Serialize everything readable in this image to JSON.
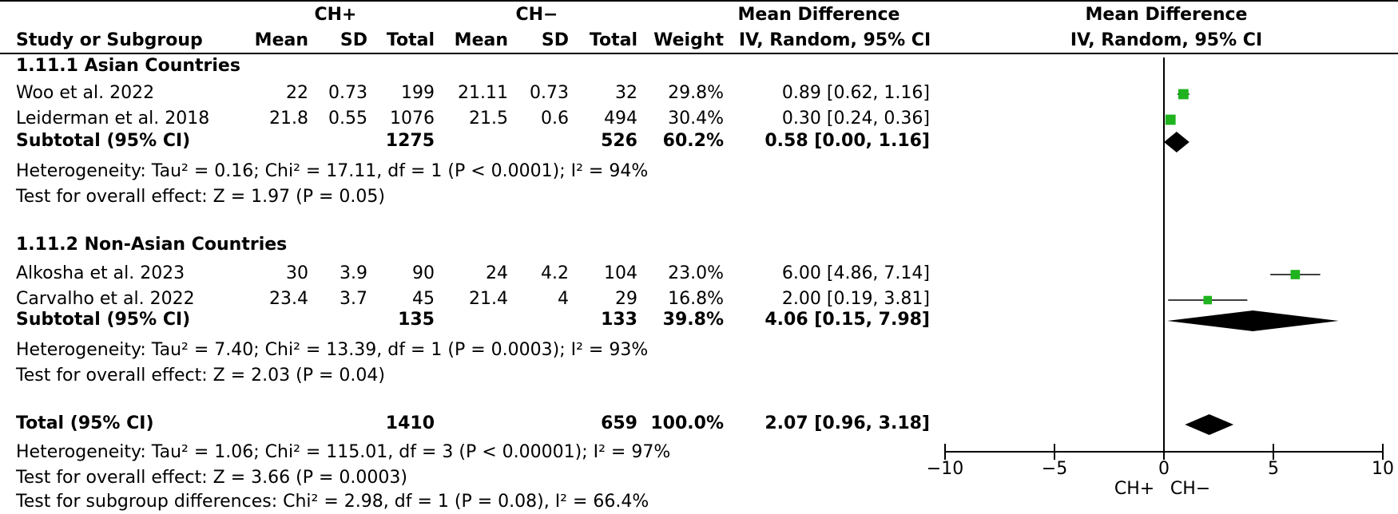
{
  "headers": {
    "group1": "CH+",
    "group2": "CH−",
    "md_title": "Mean Difference",
    "md_sub": "IV, Random, 95% CI",
    "plot_title": "Mean Difference",
    "plot_sub": "IV, Random, 95% CI",
    "study": "Study or Subgroup",
    "mean": "Mean",
    "sd": "SD",
    "total": "Total",
    "weight": "Weight"
  },
  "subgroups": [
    {
      "title": "1.11.1 Asian Countries",
      "studies": [
        {
          "name": "Woo et al. 2022",
          "m1": "22",
          "sd1": "0.73",
          "n1": "199",
          "m2": "21.11",
          "sd2": "0.73",
          "n2": "32",
          "weight": "29.8%",
          "ci": "0.89 [0.62, 1.16]"
        },
        {
          "name": "Leiderman et al. 2018",
          "m1": "21.8",
          "sd1": "0.55",
          "n1": "1076",
          "m2": "21.5",
          "sd2": "0.6",
          "n2": "494",
          "weight": "30.4%",
          "ci": "0.30 [0.24, 0.36]"
        }
      ],
      "subtotal": {
        "label": "Subtotal (95% CI)",
        "n1": "1275",
        "n2": "526",
        "weight": "60.2%",
        "ci": "0.58 [0.00, 1.16]"
      },
      "heterogeneity": "Heterogeneity: Tau² = 0.16; Chi² = 17.11, df = 1 (P < 0.0001); I² = 94%",
      "overall": "Test for overall effect: Z = 1.97 (P = 0.05)"
    },
    {
      "title": "1.11.2 Non-Asian Countries",
      "studies": [
        {
          "name": "Alkosha et al. 2023",
          "m1": "30",
          "sd1": "3.9",
          "n1": "90",
          "m2": "24",
          "sd2": "4.2",
          "n2": "104",
          "weight": "23.0%",
          "ci": "6.00 [4.86, 7.14]"
        },
        {
          "name": "Carvalho et al. 2022",
          "m1": "23.4",
          "sd1": "3.7",
          "n1": "45",
          "m2": "21.4",
          "sd2": "4",
          "n2": "29",
          "weight": "16.8%",
          "ci": "2.00 [0.19, 3.81]"
        }
      ],
      "subtotal": {
        "label": "Subtotal (95% CI)",
        "n1": "135",
        "n2": "133",
        "weight": "39.8%",
        "ci": "4.06 [0.15, 7.98]"
      },
      "heterogeneity": "Heterogeneity: Tau² = 7.40; Chi² = 13.39, df = 1 (P = 0.0003); I² = 93%",
      "overall": "Test for overall effect: Z = 2.03 (P = 0.04)"
    }
  ],
  "total": {
    "label": "Total (95% CI)",
    "n1": "1410",
    "n2": "659",
    "weight": "100.0%",
    "ci": "2.07 [0.96, 3.18]",
    "heterogeneity": "Heterogeneity: Tau² = 1.06; Chi² = 115.01, df = 3 (P < 0.00001); I² = 97%",
    "overall": "Test for overall effect: Z = 3.66 (P = 0.0003)",
    "subgroup_diff": "Test for subgroup differences: Chi² = 2.98, df = 1 (P = 0.08), I² = 66.4%"
  },
  "axis": {
    "left_label": "CH+",
    "right_label": "CH−"
  },
  "colors": {
    "study_marker": "#1fb31f",
    "diamond": "#000000",
    "line": "#000000"
  },
  "chart_data": {
    "type": "forest",
    "xlim": [
      -10,
      10
    ],
    "xticks": [
      "-10",
      "-5",
      "0",
      "5",
      "10"
    ],
    "xtick_values": [
      -10,
      -5,
      0,
      5,
      10
    ],
    "studies": [
      {
        "name": "Woo et al. 2022",
        "md": 0.89,
        "lo": 0.62,
        "hi": 1.16,
        "weight": 29.8
      },
      {
        "name": "Leiderman et al. 2018",
        "md": 0.3,
        "lo": 0.24,
        "hi": 0.36,
        "weight": 30.4
      },
      {
        "name": "Alkosha et al. 2023",
        "md": 6.0,
        "lo": 4.86,
        "hi": 7.14,
        "weight": 23.0
      },
      {
        "name": "Carvalho et al. 2022",
        "md": 2.0,
        "lo": 0.19,
        "hi": 3.81,
        "weight": 16.8
      }
    ],
    "pooled": [
      {
        "name": "Subtotal 1.11.1",
        "md": 0.58,
        "lo": 0.0,
        "hi": 1.16
      },
      {
        "name": "Subtotal 1.11.2",
        "md": 4.06,
        "lo": 0.15,
        "hi": 7.98
      },
      {
        "name": "Total",
        "md": 2.07,
        "lo": 0.96,
        "hi": 3.18
      }
    ]
  }
}
